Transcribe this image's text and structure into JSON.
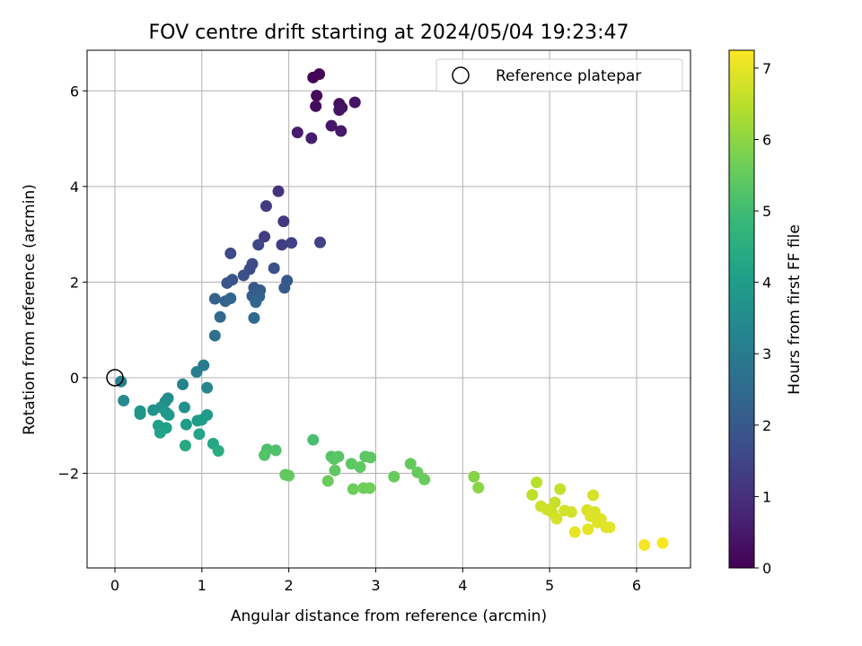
{
  "chart_data": {
    "type": "scatter",
    "title": "FOV centre drift starting at 2024/05/04 19:23:47",
    "xlabel": "Angular distance from reference (arcmin)",
    "ylabel": "Rotation from reference (arcmin)",
    "xlim": [
      -0.32,
      6.62
    ],
    "ylim": [
      -3.98,
      6.85
    ],
    "xticks": [
      0,
      1,
      2,
      3,
      4,
      5,
      6
    ],
    "yticks": [
      -2,
      0,
      2,
      4,
      6
    ],
    "grid": true,
    "legend": {
      "placement": "top-right",
      "entries": [
        "Reference platepar"
      ]
    },
    "reference_point": {
      "x": 0.0,
      "y": 0.0
    },
    "colorbar": {
      "label": "Hours from first FF file",
      "range": [
        0,
        7.25
      ],
      "ticks": [
        0,
        1,
        2,
        3,
        4,
        5,
        6,
        7
      ],
      "colormap": "viridis"
    },
    "points": [
      {
        "x": 2.28,
        "y": 6.28,
        "c": 0.05
      },
      {
        "x": 2.35,
        "y": 6.35,
        "c": 0.1
      },
      {
        "x": 2.32,
        "y": 5.9,
        "c": 0.15
      },
      {
        "x": 2.31,
        "y": 5.68,
        "c": 0.2
      },
      {
        "x": 2.58,
        "y": 5.73,
        "c": 0.25
      },
      {
        "x": 2.61,
        "y": 5.65,
        "c": 0.3
      },
      {
        "x": 2.58,
        "y": 5.6,
        "c": 0.35
      },
      {
        "x": 2.76,
        "y": 5.76,
        "c": 0.4
      },
      {
        "x": 2.49,
        "y": 5.27,
        "c": 0.45
      },
      {
        "x": 2.6,
        "y": 5.16,
        "c": 0.5
      },
      {
        "x": 2.1,
        "y": 5.13,
        "c": 0.55
      },
      {
        "x": 2.26,
        "y": 5.01,
        "c": 0.6
      },
      {
        "x": 1.88,
        "y": 3.9,
        "c": 1.05
      },
      {
        "x": 1.94,
        "y": 3.27,
        "c": 1.15
      },
      {
        "x": 1.74,
        "y": 3.59,
        "c": 1.25
      },
      {
        "x": 1.72,
        "y": 2.95,
        "c": 1.3
      },
      {
        "x": 1.92,
        "y": 2.78,
        "c": 1.35
      },
      {
        "x": 2.03,
        "y": 2.82,
        "c": 1.4
      },
      {
        "x": 2.36,
        "y": 2.83,
        "c": 1.42
      },
      {
        "x": 1.65,
        "y": 2.78,
        "c": 1.5
      },
      {
        "x": 1.33,
        "y": 2.6,
        "c": 1.6
      },
      {
        "x": 1.58,
        "y": 2.38,
        "c": 1.65
      },
      {
        "x": 1.55,
        "y": 2.27,
        "c": 1.7
      },
      {
        "x": 1.48,
        "y": 2.14,
        "c": 1.75
      },
      {
        "x": 1.83,
        "y": 2.29,
        "c": 1.8
      },
      {
        "x": 1.35,
        "y": 2.05,
        "c": 1.85
      },
      {
        "x": 1.29,
        "y": 1.98,
        "c": 1.9
      },
      {
        "x": 1.98,
        "y": 2.03,
        "c": 1.95
      },
      {
        "x": 1.95,
        "y": 1.88,
        "c": 2.0
      },
      {
        "x": 1.6,
        "y": 1.88,
        "c": 2.05
      },
      {
        "x": 1.67,
        "y": 1.83,
        "c": 2.1
      },
      {
        "x": 1.58,
        "y": 1.71,
        "c": 2.15
      },
      {
        "x": 1.66,
        "y": 1.7,
        "c": 2.2
      },
      {
        "x": 1.15,
        "y": 1.65,
        "c": 2.25
      },
      {
        "x": 1.27,
        "y": 1.6,
        "c": 2.3
      },
      {
        "x": 1.33,
        "y": 1.66,
        "c": 2.35
      },
      {
        "x": 1.62,
        "y": 1.58,
        "c": 2.4
      },
      {
        "x": 1.21,
        "y": 1.27,
        "c": 2.45
      },
      {
        "x": 1.6,
        "y": 1.25,
        "c": 2.5
      },
      {
        "x": 1.15,
        "y": 0.88,
        "c": 2.7
      },
      {
        "x": 1.02,
        "y": 0.26,
        "c": 3.0
      },
      {
        "x": 0.94,
        "y": 0.12,
        "c": 3.1
      },
      {
        "x": 0.07,
        "y": -0.08,
        "c": 3.2
      },
      {
        "x": 0.78,
        "y": -0.14,
        "c": 3.3
      },
      {
        "x": 1.06,
        "y": -0.21,
        "c": 3.35
      },
      {
        "x": 0.1,
        "y": -0.48,
        "c": 3.45
      },
      {
        "x": 0.61,
        "y": -0.43,
        "c": 3.55
      },
      {
        "x": 0.58,
        "y": -0.5,
        "c": 3.6
      },
      {
        "x": 0.8,
        "y": -0.62,
        "c": 3.65
      },
      {
        "x": 0.53,
        "y": -0.62,
        "c": 3.7
      },
      {
        "x": 0.44,
        "y": -0.68,
        "c": 3.72
      },
      {
        "x": 0.29,
        "y": -0.7,
        "c": 3.75
      },
      {
        "x": 0.29,
        "y": -0.76,
        "c": 3.8
      },
      {
        "x": 0.59,
        "y": -0.73,
        "c": 3.85
      },
      {
        "x": 0.62,
        "y": -0.78,
        "c": 3.88
      },
      {
        "x": 1.06,
        "y": -0.78,
        "c": 3.9
      },
      {
        "x": 0.95,
        "y": -0.9,
        "c": 3.95
      },
      {
        "x": 1.0,
        "y": -0.88,
        "c": 3.98
      },
      {
        "x": 0.82,
        "y": -0.98,
        "c": 4.0
      },
      {
        "x": 0.5,
        "y": -1.0,
        "c": 4.05
      },
      {
        "x": 0.59,
        "y": -1.05,
        "c": 4.1
      },
      {
        "x": 0.52,
        "y": -1.15,
        "c": 4.15
      },
      {
        "x": 0.97,
        "y": -1.18,
        "c": 4.2
      },
      {
        "x": 1.13,
        "y": -1.38,
        "c": 4.3
      },
      {
        "x": 0.81,
        "y": -1.42,
        "c": 4.35
      },
      {
        "x": 1.19,
        "y": -1.53,
        "c": 4.45
      },
      {
        "x": 2.28,
        "y": -1.3,
        "c": 5.1
      },
      {
        "x": 1.75,
        "y": -1.5,
        "c": 5.15
      },
      {
        "x": 1.85,
        "y": -1.52,
        "c": 5.2
      },
      {
        "x": 1.72,
        "y": -1.62,
        "c": 5.25
      },
      {
        "x": 2.49,
        "y": -1.65,
        "c": 5.3
      },
      {
        "x": 2.57,
        "y": -1.65,
        "c": 5.32
      },
      {
        "x": 2.52,
        "y": -1.7,
        "c": 5.34
      },
      {
        "x": 2.88,
        "y": -1.65,
        "c": 5.36
      },
      {
        "x": 2.94,
        "y": -1.67,
        "c": 5.38
      },
      {
        "x": 2.72,
        "y": -1.8,
        "c": 5.4
      },
      {
        "x": 2.82,
        "y": -1.87,
        "c": 5.42
      },
      {
        "x": 2.53,
        "y": -1.94,
        "c": 5.44
      },
      {
        "x": 1.96,
        "y": -2.03,
        "c": 5.46
      },
      {
        "x": 2.0,
        "y": -2.05,
        "c": 5.48
      },
      {
        "x": 3.4,
        "y": -1.8,
        "c": 5.5
      },
      {
        "x": 3.48,
        "y": -1.98,
        "c": 5.52
      },
      {
        "x": 3.21,
        "y": -2.07,
        "c": 5.54
      },
      {
        "x": 3.56,
        "y": -2.13,
        "c": 5.56
      },
      {
        "x": 2.45,
        "y": -2.16,
        "c": 5.58
      },
      {
        "x": 2.74,
        "y": -2.33,
        "c": 5.6
      },
      {
        "x": 2.86,
        "y": -2.31,
        "c": 5.62
      },
      {
        "x": 2.93,
        "y": -2.31,
        "c": 5.64
      },
      {
        "x": 4.13,
        "y": -2.07,
        "c": 5.9
      },
      {
        "x": 4.18,
        "y": -2.3,
        "c": 5.95
      },
      {
        "x": 4.85,
        "y": -2.19,
        "c": 6.5
      },
      {
        "x": 4.8,
        "y": -2.45,
        "c": 6.55
      },
      {
        "x": 5.12,
        "y": -2.33,
        "c": 6.6
      },
      {
        "x": 5.06,
        "y": -2.61,
        "c": 6.65
      },
      {
        "x": 4.9,
        "y": -2.69,
        "c": 6.7
      },
      {
        "x": 4.97,
        "y": -2.76,
        "c": 6.72
      },
      {
        "x": 5.03,
        "y": -2.82,
        "c": 6.74
      },
      {
        "x": 5.17,
        "y": -2.78,
        "c": 6.76
      },
      {
        "x": 5.25,
        "y": -2.81,
        "c": 6.78
      },
      {
        "x": 5.08,
        "y": -2.95,
        "c": 6.8
      },
      {
        "x": 5.5,
        "y": -2.46,
        "c": 6.82
      },
      {
        "x": 5.43,
        "y": -2.77,
        "c": 6.84
      },
      {
        "x": 5.52,
        "y": -2.81,
        "c": 6.86
      },
      {
        "x": 5.47,
        "y": -2.9,
        "c": 6.88
      },
      {
        "x": 5.59,
        "y": -2.96,
        "c": 6.9
      },
      {
        "x": 5.55,
        "y": -3.03,
        "c": 6.92
      },
      {
        "x": 5.65,
        "y": -3.13,
        "c": 6.94
      },
      {
        "x": 5.69,
        "y": -3.13,
        "c": 6.96
      },
      {
        "x": 5.44,
        "y": -3.17,
        "c": 6.98
      },
      {
        "x": 5.29,
        "y": -3.23,
        "c": 7.0
      },
      {
        "x": 6.09,
        "y": -3.5,
        "c": 7.15
      },
      {
        "x": 6.3,
        "y": -3.46,
        "c": 7.2
      }
    ]
  }
}
